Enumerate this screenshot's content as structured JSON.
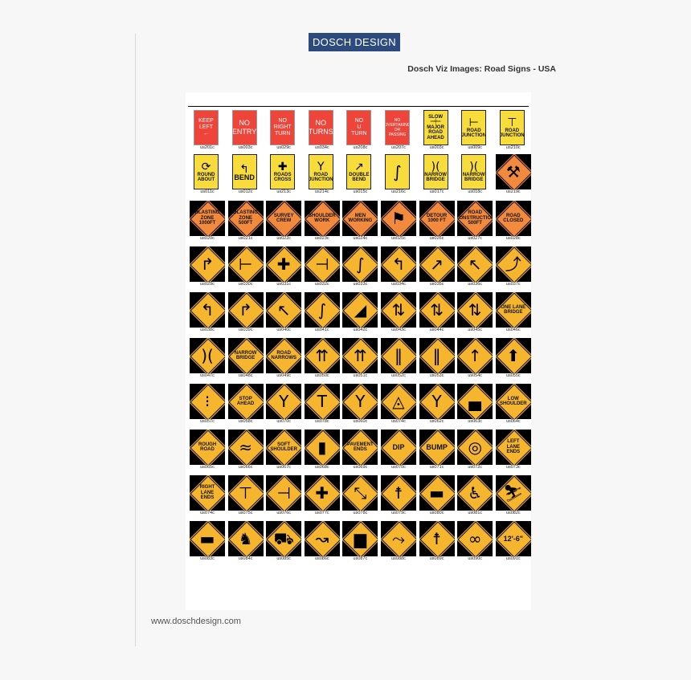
{
  "header": {
    "logo": "DOSCH DESIGN",
    "title": "Dosch Viz Images: Road Signs - USA"
  },
  "footer": {
    "url": "www.doschdesign.com"
  },
  "colors": {
    "logo_bg": "#2c4a7e",
    "sign_red": "#ee4439",
    "sign_yellow": "#f5b52e",
    "sign_orange": "#f28a3e",
    "plate_yellow": "#f8dc3c"
  },
  "rows": [
    [
      {
        "k": "red",
        "t": "KEEP\nLEFT\n←",
        "c": "us201c"
      },
      {
        "k": "red",
        "t": "NO\nENTRY",
        "c": "us003c"
      },
      {
        "k": "red",
        "t": "NO\nRIGHT\nTURN",
        "c": "us029c"
      },
      {
        "k": "red",
        "t": "NO\nTURNS",
        "c": "us034c"
      },
      {
        "k": "red",
        "t": "NO\nU\nTURN",
        "c": "us208c"
      },
      {
        "k": "red",
        "t": "NO\nOVERTAKING\nOR\nPASSING",
        "c": "us207c"
      },
      {
        "k": "plate",
        "t": "SLOW\n═╪═\nMAJOR\nROAD\nAHEAD",
        "c": "us003c"
      },
      {
        "k": "plate",
        "s": "⊢",
        "t": "ROAD\nJUNCTION",
        "c": "us009c"
      },
      {
        "k": "plate",
        "s": "⊤",
        "t": "ROAD\nJUNCTION",
        "c": "us210c"
      }
    ],
    [
      {
        "k": "plate",
        "s": "⟳",
        "t": "ROUND\nABOUT",
        "c": "us011c"
      },
      {
        "k": "plate",
        "s": "↰",
        "t": "BEND",
        "c": "us012c"
      },
      {
        "k": "plate",
        "s": "✚",
        "t": "ROADS\nCROSS",
        "c": "us213c"
      },
      {
        "k": "plate",
        "s": "Y",
        "t": "ROAD\nJUNCTION",
        "c": "us214c"
      },
      {
        "k": "plate",
        "s": "↗",
        "t": "DOUBLE\nBEND",
        "c": "us015c"
      },
      {
        "k": "plate",
        "s": "∫",
        "c": "us216c"
      },
      {
        "k": "plate",
        "s": ")(",
        "t": "NARROW\nBRIDGE",
        "c": "us017c"
      },
      {
        "k": "plate",
        "s": ")(",
        "t": "NARROW\nBRIDGE",
        "c": "us018c"
      },
      {
        "k": "org",
        "s": "⚒",
        "c": "us219c"
      }
    ],
    [
      {
        "k": "org",
        "t": "BLASTING\nZONE\n1000FT",
        "c": "us020c"
      },
      {
        "k": "org",
        "t": "BLASTING\nZONE\n500FT",
        "c": "us021c"
      },
      {
        "k": "org",
        "t": "SURVEY\nCREW",
        "c": "us022c"
      },
      {
        "k": "org",
        "t": "SHOULDER\nWORK",
        "c": "us023c"
      },
      {
        "k": "org",
        "t": "MEN\nWORKING",
        "c": "us024c"
      },
      {
        "k": "org",
        "s": "⚑",
        "c": "us025c"
      },
      {
        "k": "org",
        "t": "DETOUR\n1000 FT",
        "c": "us026c"
      },
      {
        "k": "org",
        "t": "ROAD\nCONSTRUCTION\n500FT",
        "c": "us027c"
      },
      {
        "k": "org",
        "t": "ROAD\nCLOSED",
        "c": "us028c"
      }
    ],
    [
      {
        "k": "yel",
        "s": "↱",
        "c": "us029c"
      },
      {
        "k": "yel",
        "s": "⊢",
        "c": "us030c"
      },
      {
        "k": "yel",
        "s": "✚",
        "c": "us031c"
      },
      {
        "k": "yel",
        "s": "⊣",
        "c": "us032c"
      },
      {
        "k": "yel",
        "s": "∫",
        "c": "us033c"
      },
      {
        "k": "yel",
        "s": "↰",
        "c": "us034c"
      },
      {
        "k": "yel",
        "s": "↗",
        "c": "us035c"
      },
      {
        "k": "yel",
        "s": "↖",
        "c": "us036c"
      },
      {
        "k": "yel",
        "s": "⤴",
        "c": "us037c"
      }
    ],
    [
      {
        "k": "yel",
        "s": "↰",
        "c": "us038c"
      },
      {
        "k": "yel",
        "s": "↱",
        "c": "us039c"
      },
      {
        "k": "yel",
        "s": "↖",
        "c": "us040c"
      },
      {
        "k": "yel",
        "s": "∫",
        "c": "us041c"
      },
      {
        "k": "yel",
        "s": "◢",
        "c": "us042c"
      },
      {
        "k": "yel",
        "s": "⇅",
        "c": "us043c"
      },
      {
        "k": "yel",
        "s": "⇅",
        "c": "us044c"
      },
      {
        "k": "yel",
        "s": "⇅",
        "c": "us045c"
      },
      {
        "k": "yel",
        "t": "ONE LANE\nBRIDGE",
        "c": "us046c"
      }
    ],
    [
      {
        "k": "yel",
        "s": ")(",
        "c": "us047c"
      },
      {
        "k": "yel",
        "t": "NARROW\nBRIDGE",
        "c": "us048c"
      },
      {
        "k": "yel",
        "t": "ROAD\nNARROWS",
        "c": "us049c"
      },
      {
        "k": "yel",
        "s": "⇈",
        "c": "us050c"
      },
      {
        "k": "yel",
        "s": "⇈",
        "c": "us051c"
      },
      {
        "k": "yel",
        "s": "‖",
        "c": "us052c"
      },
      {
        "k": "yel",
        "s": "‖",
        "c": "us053c"
      },
      {
        "k": "yel",
        "s": "↑",
        "c": "us054c"
      },
      {
        "k": "yel",
        "s": "⬆",
        "c": "us055c"
      }
    ],
    [
      {
        "k": "yel",
        "s": "⁝",
        "c": "us057c"
      },
      {
        "k": "yel",
        "t": "STOP\nAHEAD",
        "c": "us058c"
      },
      {
        "k": "yel",
        "s": "Y",
        "c": "us070c"
      },
      {
        "k": "yel",
        "s": "T",
        "c": "us078c"
      },
      {
        "k": "yel",
        "s": "Y",
        "c": "us060c"
      },
      {
        "k": "yel",
        "s": "◬",
        "c": "us074c"
      },
      {
        "k": "yel",
        "s": "Y",
        "c": "us062c"
      },
      {
        "k": "yel",
        "s": "▄",
        "c": "us063c"
      },
      {
        "k": "yel",
        "t": "LOW\nSHOULDER",
        "c": "us064c"
      }
    ],
    [
      {
        "k": "yel",
        "t": "ROUGH\nROAD",
        "c": "us065c"
      },
      {
        "k": "yel",
        "s": "≈",
        "c": "us066c"
      },
      {
        "k": "yel",
        "t": "SOFT\nSHOULDER",
        "c": "us067c"
      },
      {
        "k": "yel",
        "s": "▮",
        "c": "us068c"
      },
      {
        "k": "yel",
        "t": "PAVEMENT\nENDS",
        "c": "us069c"
      },
      {
        "k": "yel",
        "t": "DIP",
        "c": "us070c"
      },
      {
        "k": "yel",
        "t": "BUMP",
        "c": "us071c"
      },
      {
        "k": "yel",
        "s": "◎",
        "c": "us072c"
      },
      {
        "k": "yel",
        "t": "LEFT\nLANE\nENDS",
        "c": "us073c"
      }
    ],
    [
      {
        "k": "yel",
        "t": "RIGHT\nLANE\nENDS",
        "c": "us074c"
      },
      {
        "k": "yel",
        "s": "⊤",
        "c": "us075c"
      },
      {
        "k": "yel",
        "s": "⊣",
        "c": "us076c"
      },
      {
        "k": "yel",
        "s": "✚",
        "c": "us077c"
      },
      {
        "k": "yel",
        "s": "⤡",
        "c": "us078c"
      },
      {
        "k": "yel",
        "s": "☨",
        "c": "us079c"
      },
      {
        "k": "yel",
        "s": "▬",
        "c": "us080c"
      },
      {
        "k": "yel",
        "s": "♿",
        "c": "us081c"
      },
      {
        "k": "yel",
        "s": "⛷",
        "c": "us082c"
      }
    ],
    [
      {
        "k": "yel",
        "s": "▬",
        "c": "us083c"
      },
      {
        "k": "yel",
        "s": "♞",
        "c": "us084c"
      },
      {
        "k": "yel",
        "s": "⛟",
        "c": "us085c"
      },
      {
        "k": "yel",
        "s": "↝",
        "c": "us086c"
      },
      {
        "k": "yel",
        "s": "▆",
        "c": "us087c"
      },
      {
        "k": "yel",
        "s": "⤳",
        "c": "us088c"
      },
      {
        "k": "yel",
        "s": "☨",
        "c": "us089c"
      },
      {
        "k": "yel",
        "s": "∞",
        "c": "us090c"
      },
      {
        "k": "yel",
        "t": "12'-6\"",
        "c": "us091c"
      }
    ]
  ]
}
